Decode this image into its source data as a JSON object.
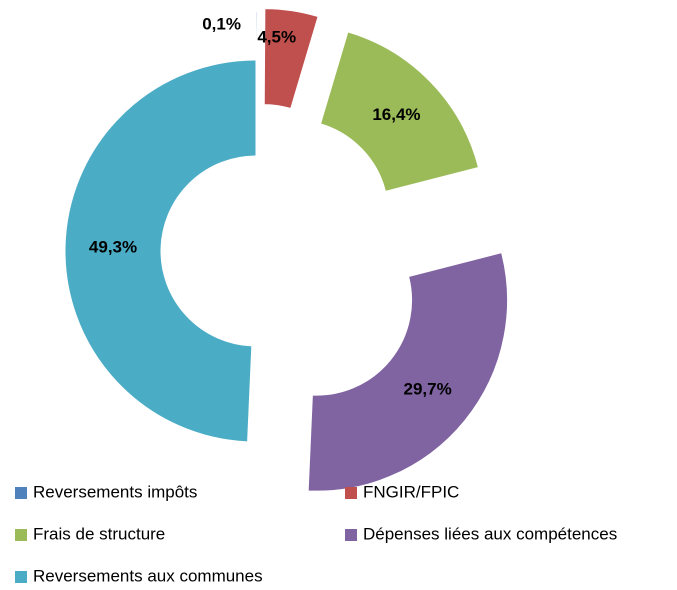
{
  "chart_data": {
    "type": "donut",
    "categories": [
      "Reversements impôts",
      "FNGIR/FPIC",
      "Frais de structure",
      "Dépenses liées aux compétences",
      "Reversements aux communes"
    ],
    "values": [
      0.1,
      4.5,
      16.4,
      29.7,
      49.3
    ],
    "value_labels": [
      "0,1%",
      "4,5%",
      "16,4%",
      "29,7%",
      "49,3%"
    ],
    "colors": [
      "#4f81bd",
      "#c0504d",
      "#9bbb59",
      "#8064a2",
      "#4bacc6"
    ],
    "legend": "bottom"
  }
}
